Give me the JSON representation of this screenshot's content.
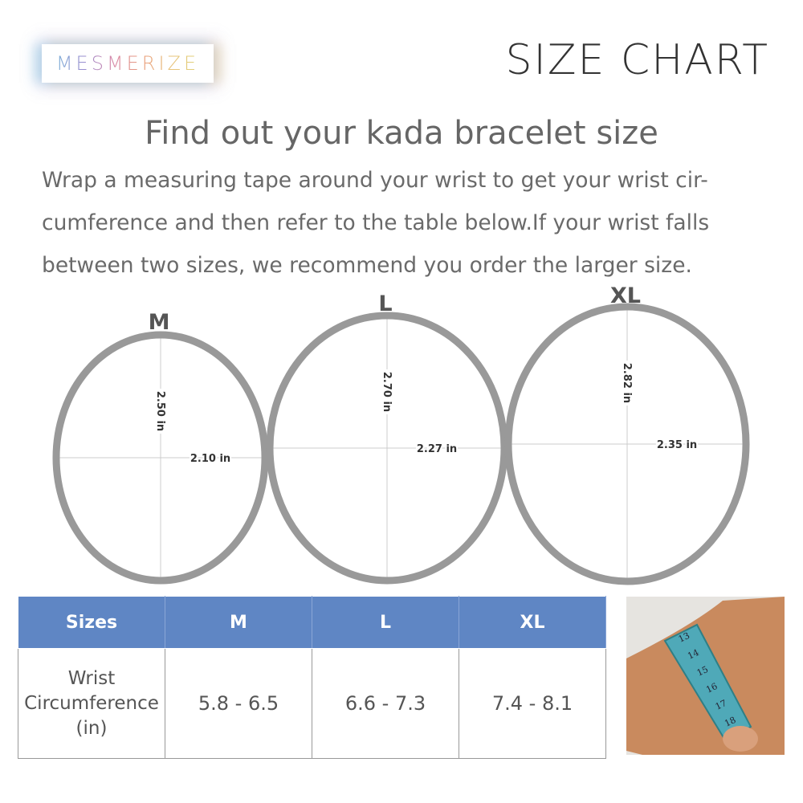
{
  "brand": {
    "logo": "MESMERIZE"
  },
  "header": {
    "title": "SIZE CHART"
  },
  "heading": "Find out your kada bracelet size",
  "description": "Wrap a measuring tape around your wrist to get your wrist cir-cumference and then refer to the table below.If your wrist falls between two sizes, we recommend you order the larger size.",
  "bracelets": [
    {
      "size": "M",
      "height": "2.50 in",
      "width": "2.10 in"
    },
    {
      "size": "L",
      "height": "2.70 in",
      "width": "2.27 in"
    },
    {
      "size": "XL",
      "height": "2.82 in",
      "width": "2.35 in"
    }
  ],
  "table": {
    "headers": [
      "Sizes",
      "M",
      "L",
      "XL"
    ],
    "row_label": "Wrist Circumference (in)",
    "values": [
      "5.8 - 6.5",
      "6.6 - 7.3",
      "7.4 - 8.1"
    ]
  },
  "photo": {
    "tape_numbers": [
      "13",
      "14",
      "15",
      "16",
      "17",
      "18"
    ]
  },
  "colors": {
    "header_blue": "#5f86c4",
    "ring_gray": "#999999",
    "tape": "#4fa9b8"
  }
}
